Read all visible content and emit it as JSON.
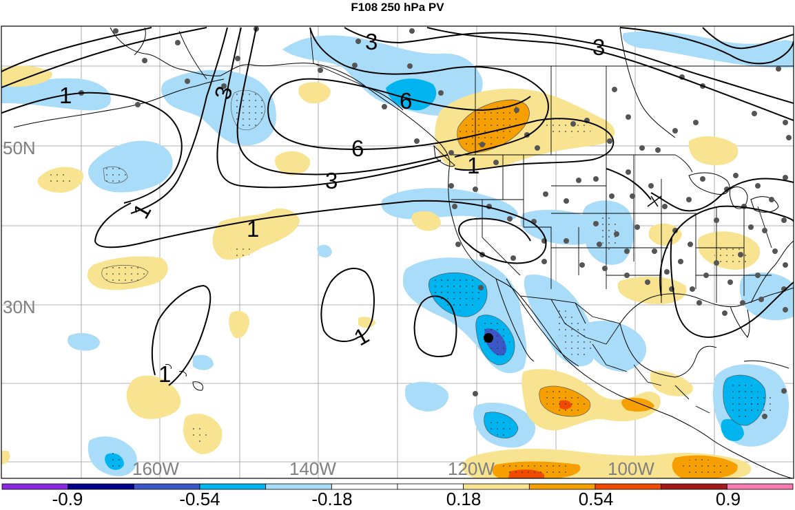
{
  "title": "F108 250 hPa PV",
  "latitude_labels": [
    "50N",
    "30N"
  ],
  "longitude_labels": [
    "160W",
    "140W",
    "120W",
    "100W"
  ],
  "contour_labels": [
    "3",
    "3",
    "3",
    "3",
    "1",
    "1",
    "1",
    "1",
    "1",
    "1",
    "6",
    "6"
  ],
  "colorbar": {
    "tick_labels": [
      "-0.9",
      "-0.54",
      "-0.18",
      "0.18",
      "0.54",
      "0.9"
    ],
    "colors": [
      "#8a2be2",
      "#00008b",
      "#3c58c8",
      "#00b4f0",
      "#a8dcf8",
      "#ffffff",
      "#ffffff",
      "#f8e490",
      "#f5a000",
      "#f04a00",
      "#a41a1a",
      "#f47ab0"
    ]
  },
  "colors": {
    "light_blue": "#a8dcf8",
    "blue": "#00b4f0",
    "dark_blue": "#3c58c8",
    "yellow": "#f8e490",
    "orange": "#f5a000",
    "red_orange": "#f04a00",
    "gridline": "#999999",
    "label_gray": "#808080"
  }
}
